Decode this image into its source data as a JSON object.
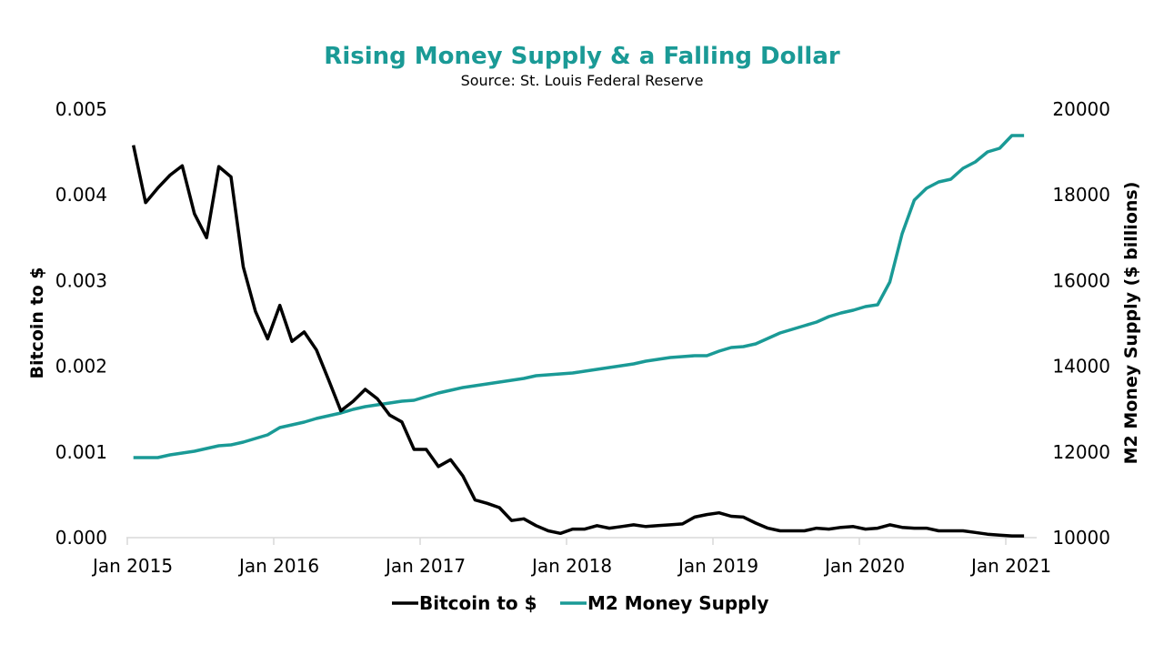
{
  "chart_data": {
    "type": "line",
    "title": "Rising Money Supply & a Falling Dollar",
    "subtitle": "Source: St. Louis Federal Reserve",
    "xlabel": "",
    "x_tick_labels": [
      "Jan 2015",
      "Jan 2016",
      "Jan 2017",
      "Jan 2018",
      "Jan 2019",
      "Jan 2020",
      "Jan 2021"
    ],
    "x_start": "Jan 2015",
    "x_frequency": "monthly",
    "left_axis": {
      "label": "Bitcoin to $",
      "ylim": [
        0,
        0.005
      ],
      "ticks": [
        "0.000",
        "0.001",
        "0.002",
        "0.003",
        "0.004",
        "0.005"
      ]
    },
    "right_axis": {
      "label": "M2 Money Supply ($ billions)",
      "ylim": [
        10000,
        20000
      ],
      "ticks": [
        "10000",
        "12000",
        "14000",
        "16000",
        "18000",
        "20000"
      ]
    },
    "grid": false,
    "legend_position": "bottom",
    "series": [
      {
        "name": "Bitcoin to $",
        "axis": "left",
        "color": "#000000",
        "values": [
          0.00458,
          0.00391,
          0.00408,
          0.00423,
          0.00434,
          0.00378,
          0.0035,
          0.00433,
          0.00421,
          0.00316,
          0.00264,
          0.00232,
          0.00271,
          0.00229,
          0.0024,
          0.00219,
          0.00184,
          0.00148,
          0.00159,
          0.00173,
          0.00162,
          0.00143,
          0.00135,
          0.00103,
          0.00103,
          0.00083,
          0.00091,
          0.00072,
          0.00044,
          0.0004,
          0.00035,
          0.0002,
          0.00022,
          0.00014,
          8e-05,
          5e-05,
          0.0001,
          0.0001,
          0.00014,
          0.00011,
          0.00013,
          0.00015,
          0.00013,
          0.00014,
          0.00015,
          0.00016,
          0.00024,
          0.00027,
          0.00029,
          0.00025,
          0.00024,
          0.00017,
          0.00011,
          8e-05,
          8e-05,
          8e-05,
          0.00011,
          0.0001,
          0.00012,
          0.00013,
          0.0001,
          0.00011,
          0.00015,
          0.00012,
          0.00011,
          0.00011,
          8e-05,
          8e-05,
          8e-05,
          6e-05,
          4e-05,
          3e-05,
          2e-05,
          2e-05
        ]
      },
      {
        "name": "M2 Money Supply",
        "axis": "right",
        "color": "#1a9a96",
        "values": [
          11868,
          11868,
          11868,
          11932,
          11975,
          12017,
          12081,
          12144,
          12166,
          12229,
          12314,
          12399,
          12569,
          12633,
          12696,
          12781,
          12845,
          12909,
          12994,
          13057,
          13100,
          13142,
          13185,
          13206,
          13291,
          13376,
          13439,
          13503,
          13546,
          13588,
          13631,
          13673,
          13715,
          13779,
          13800,
          13822,
          13843,
          13885,
          13928,
          13970,
          14013,
          14055,
          14119,
          14161,
          14204,
          14225,
          14246,
          14246,
          14352,
          14437,
          14459,
          14522,
          14650,
          14777,
          14862,
          14947,
          15032,
          15159,
          15244,
          15308,
          15393,
          15435,
          15966,
          17091,
          17877,
          18153,
          18301,
          18365,
          18620,
          18769,
          19002,
          19087,
          19384,
          19384
        ]
      }
    ]
  },
  "colors": {
    "title": "#1a9a96",
    "axis_line": "#d9d9d9",
    "text": "#000000"
  }
}
